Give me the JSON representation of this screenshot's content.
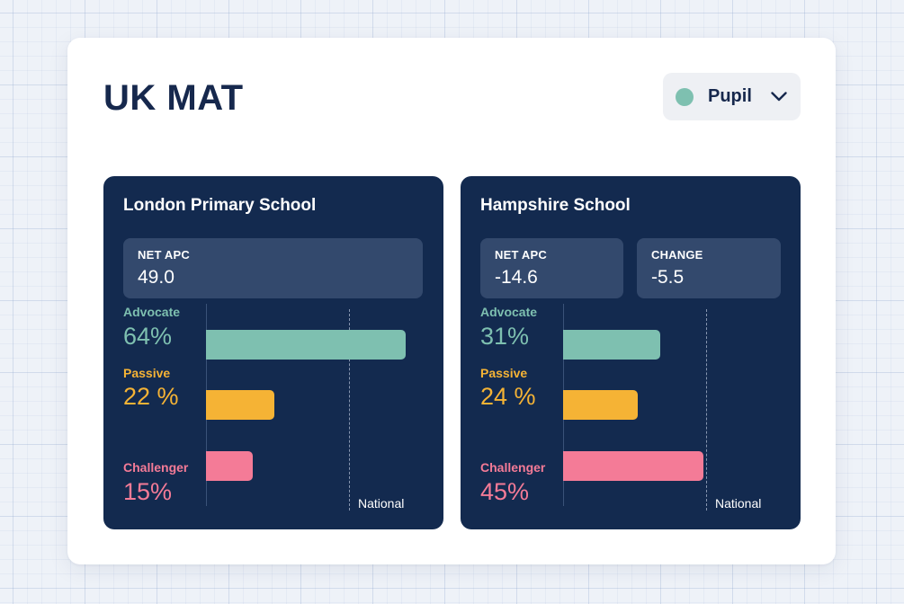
{
  "page": {
    "title": "UK MAT"
  },
  "selector": {
    "label": "Pupil",
    "dot_color": "#7ec0b0"
  },
  "colors": {
    "advocate": "#7ec0b0",
    "passive": "#f5b335",
    "challenger": "#f47b97"
  },
  "schools": [
    {
      "name": "London Primary School",
      "stats": [
        {
          "key": "NET APC",
          "value": "49.0"
        }
      ],
      "national_label": "National",
      "rows": [
        {
          "label": "Advocate",
          "pct_text": "64%",
          "value": 64
        },
        {
          "label": "Passive",
          "pct_text": "22 %",
          "value": 22
        },
        {
          "label": "Challenger",
          "pct_text": "15%",
          "value": 15
        }
      ]
    },
    {
      "name": "Hampshire School",
      "stats": [
        {
          "key": "NET APC",
          "value": "-14.6"
        },
        {
          "key": "CHANGE",
          "value": "-5.5"
        }
      ],
      "national_label": "National",
      "rows": [
        {
          "label": "Advocate",
          "pct_text": "31%",
          "value": 31
        },
        {
          "label": "Passive",
          "pct_text": "24 %",
          "value": 24
        },
        {
          "label": "Challenger",
          "pct_text": "45%",
          "value": 45
        }
      ]
    }
  ]
}
